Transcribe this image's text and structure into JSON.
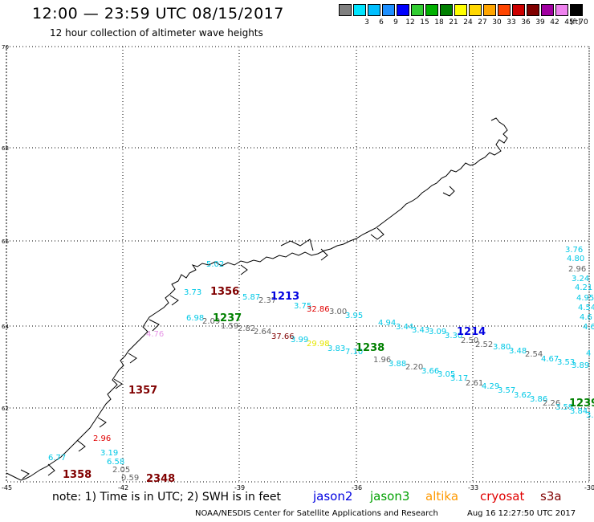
{
  "header": {
    "title": "12:00 — 23:59 UTC 08/15/2017",
    "subtitle": "12 hour collection of altimeter wave heights"
  },
  "legend": {
    "unit": "(ft)",
    "bins": [
      {
        "label": "",
        "color": "#808080"
      },
      {
        "label": "3",
        "color": "#00e5ff"
      },
      {
        "label": "6",
        "color": "#00bfff"
      },
      {
        "label": "9",
        "color": "#1e90ff"
      },
      {
        "label": "12",
        "color": "#0000ff"
      },
      {
        "label": "15",
        "color": "#32cd32"
      },
      {
        "label": "18",
        "color": "#00b000"
      },
      {
        "label": "21",
        "color": "#008000"
      },
      {
        "label": "24",
        "color": "#ffff00"
      },
      {
        "label": "27",
        "color": "#ffd700"
      },
      {
        "label": "30",
        "color": "#ffa500"
      },
      {
        "label": "33",
        "color": "#ff4500"
      },
      {
        "label": "36",
        "color": "#cc0000"
      },
      {
        "label": "39",
        "color": "#800000"
      },
      {
        "label": "42",
        "color": "#a000a0"
      },
      {
        "label": "45",
        "color": "#ee82ee"
      },
      {
        "label": "70",
        "color": "#000000"
      }
    ]
  },
  "map": {
    "lon_ticks": [
      "-45",
      "-42",
      "-39",
      "-36",
      "-33",
      "-30"
    ],
    "lat_ticks": [
      "70",
      "68",
      "66",
      "64",
      "62"
    ],
    "colors": {
      "cyan": "#00c8e6",
      "gray": "#606060",
      "darkred": "#800000",
      "red": "#e00000",
      "green": "#008000",
      "blue": "#0000e0",
      "yellow": "#e6e600",
      "pink": "#e696e6"
    },
    "labels": [
      {
        "text": "5.02",
        "color": "cyan"
      },
      {
        "text": "3.73",
        "color": "cyan"
      },
      {
        "text": "1356",
        "color": "darkred",
        "big": true
      },
      {
        "text": "5.87",
        "color": "cyan"
      },
      {
        "text": "2.37",
        "color": "gray"
      },
      {
        "text": "1213",
        "color": "blue",
        "big": true
      },
      {
        "text": "3.75",
        "color": "cyan"
      },
      {
        "text": "32.86",
        "color": "red"
      },
      {
        "text": "3.00",
        "color": "gray"
      },
      {
        "text": "3.95",
        "color": "cyan"
      },
      {
        "text": "6.98",
        "color": "cyan"
      },
      {
        "text": "2.09",
        "color": "gray"
      },
      {
        "text": "1237",
        "color": "green",
        "big": true
      },
      {
        "text": "1.59",
        "color": "gray"
      },
      {
        "text": "2.82",
        "color": "gray"
      },
      {
        "text": "2.64",
        "color": "gray"
      },
      {
        "text": "37.66",
        "color": "darkred"
      },
      {
        "text": "3.99",
        "color": "cyan"
      },
      {
        "text": "29.98",
        "color": "yellow"
      },
      {
        "text": "3.83",
        "color": "cyan"
      },
      {
        "text": "7.10",
        "color": "cyan"
      },
      {
        "text": "1238",
        "color": "green",
        "big": true
      },
      {
        "text": "4.94",
        "color": "cyan"
      },
      {
        "text": "3.44",
        "color": "cyan"
      },
      {
        "text": "3.43",
        "color": "cyan"
      },
      {
        "text": "3.09",
        "color": "cyan"
      },
      {
        "text": "3.30",
        "color": "cyan"
      },
      {
        "text": "1214",
        "color": "blue",
        "big": true
      },
      {
        "text": "2.50",
        "color": "gray"
      },
      {
        "text": "2.52",
        "color": "gray"
      },
      {
        "text": "3.80",
        "color": "cyan"
      },
      {
        "text": "3.48",
        "color": "cyan"
      },
      {
        "text": "2.54",
        "color": "gray"
      },
      {
        "text": "4.67",
        "color": "cyan"
      },
      {
        "text": "3.53",
        "color": "cyan"
      },
      {
        "text": "3.89",
        "color": "cyan"
      },
      {
        "text": "1.96",
        "color": "gray"
      },
      {
        "text": "3.88",
        "color": "cyan"
      },
      {
        "text": "2.20",
        "color": "gray"
      },
      {
        "text": "3.66",
        "color": "cyan"
      },
      {
        "text": "3.05",
        "color": "cyan"
      },
      {
        "text": "3.17",
        "color": "cyan"
      },
      {
        "text": "2.61",
        "color": "gray"
      },
      {
        "text": "4.29",
        "color": "cyan"
      },
      {
        "text": "3.57",
        "color": "cyan"
      },
      {
        "text": "3.62",
        "color": "cyan"
      },
      {
        "text": "3.86",
        "color": "cyan"
      },
      {
        "text": "2.26",
        "color": "gray"
      },
      {
        "text": "3.59",
        "color": "cyan"
      },
      {
        "text": "3.84",
        "color": "cyan"
      },
      {
        "text": "1239",
        "color": "green",
        "big": true
      },
      {
        "text": "3.4",
        "color": "cyan"
      },
      {
        "text": "4.76",
        "color": "pink"
      },
      {
        "text": "1357",
        "color": "darkred",
        "big": true
      },
      {
        "text": "2.96",
        "color": "red"
      },
      {
        "text": "3.19",
        "color": "cyan"
      },
      {
        "text": "6.77",
        "color": "cyan"
      },
      {
        "text": "6.58",
        "color": "cyan"
      },
      {
        "text": "2.05",
        "color": "gray"
      },
      {
        "text": "0.59",
        "color": "gray"
      },
      {
        "text": "1358",
        "color": "darkred",
        "big": true
      },
      {
        "text": "2348",
        "color": "darkred",
        "big": true
      },
      {
        "text": "3.76",
        "color": "cyan"
      },
      {
        "text": "4.80",
        "color": "cyan"
      },
      {
        "text": "2.96",
        "color": "gray"
      },
      {
        "text": "3.24",
        "color": "cyan"
      },
      {
        "text": "4.21",
        "color": "cyan"
      },
      {
        "text": "4.95",
        "color": "cyan"
      },
      {
        "text": "4.54",
        "color": "cyan"
      },
      {
        "text": "4.6",
        "color": "cyan"
      },
      {
        "text": "4.6",
        "color": "cyan"
      },
      {
        "text": "4",
        "color": "cyan"
      }
    ]
  },
  "footer": {
    "note": "note: 1) Time is in UTC; 2) SWH is in feet",
    "satellites": [
      {
        "name": "jason2",
        "color": "#0000e0"
      },
      {
        "name": "jason3",
        "color": "#00a000"
      },
      {
        "name": "altika",
        "color": "#ff9900"
      },
      {
        "name": "cryosat",
        "color": "#e00000"
      },
      {
        "name": "s3a",
        "color": "#800000"
      }
    ],
    "credit": "NOAA/NESDIS Center for Satellite Applications and Research",
    "timestamp": "Aug 16 12:27:50 UTC 2017"
  }
}
